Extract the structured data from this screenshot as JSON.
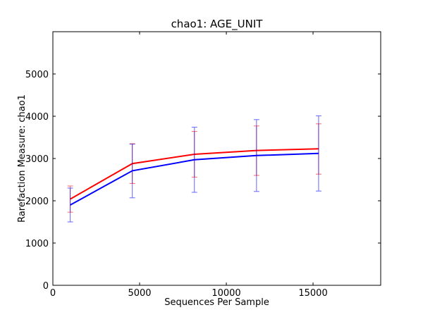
{
  "chart_data": {
    "type": "line",
    "title": "chao1: AGE_UNIT",
    "xlabel": "Sequences Per Sample",
    "ylabel": "Rarefaction Measure: chao1",
    "xlim": [
      0,
      18900
    ],
    "ylim": [
      0,
      6000
    ],
    "xticks": [
      0,
      5000,
      10000,
      15000
    ],
    "yticks": [
      0,
      1000,
      2000,
      3000,
      4000,
      5000
    ],
    "grid": false,
    "legend": "none",
    "x": [
      1000,
      4580,
      8160,
      11740,
      15320
    ],
    "series": [
      {
        "color": "#ff0000",
        "values": [
          2040,
          2880,
          3100,
          3190,
          3230
        ],
        "err_low": [
          1730,
          2410,
          2560,
          2600,
          2630
        ],
        "err_high": [
          2350,
          3350,
          3640,
          3770,
          3820
        ]
      },
      {
        "color": "#0000ff",
        "values": [
          1900,
          2710,
          2970,
          3070,
          3120
        ],
        "err_low": [
          1500,
          2070,
          2200,
          2220,
          2230
        ],
        "err_high": [
          2300,
          3340,
          3740,
          3920,
          4010
        ]
      }
    ]
  }
}
